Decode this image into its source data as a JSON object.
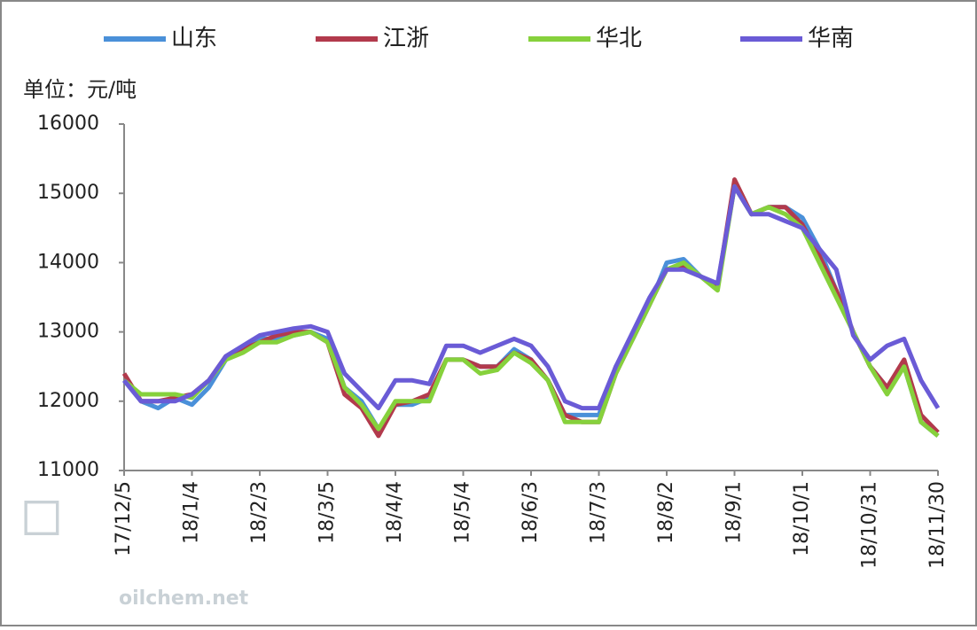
{
  "chart_data": {
    "type": "line",
    "unit_label": "单位：元/吨",
    "watermark": "oilchem.net",
    "categories": [
      "17/12/5",
      null,
      null,
      null,
      "18/1/4",
      null,
      null,
      null,
      "18/2/3",
      null,
      null,
      null,
      "18/3/5",
      null,
      null,
      null,
      "18/4/4",
      null,
      null,
      null,
      "18/5/4",
      null,
      null,
      null,
      "18/6/3",
      null,
      null,
      null,
      "18/7/3",
      null,
      null,
      null,
      "18/8/2",
      null,
      null,
      null,
      "18/9/1",
      null,
      null,
      null,
      "18/10/1",
      null,
      null,
      null,
      "18/10/31",
      null,
      null,
      null,
      "18/11/30"
    ],
    "ylim": [
      11000,
      16000
    ],
    "yticks": [
      11000,
      12000,
      13000,
      14000,
      15000,
      16000
    ],
    "grid": false,
    "legend": "top",
    "series": [
      {
        "name": "山东",
        "color": "#4a90d9",
        "values": [
          12300,
          12000,
          11900,
          12050,
          11950,
          12200,
          12600,
          12750,
          12900,
          12900,
          12950,
          13000,
          12900,
          12200,
          12000,
          11600,
          11950,
          11950,
          12050,
          12600,
          12600,
          12500,
          12500,
          12750,
          12600,
          12300,
          11800,
          11800,
          11800,
          12500,
          12900,
          13400,
          14000,
          14050,
          13800,
          13650,
          15100,
          14700,
          14800,
          14800,
          14650,
          14200,
          13600,
          13000,
          12500,
          12200,
          12500,
          11700,
          11500
        ]
      },
      {
        "name": "江浙",
        "color": "#b23a4c",
        "values": [
          12400,
          12000,
          12000,
          12050,
          12100,
          12300,
          12650,
          12750,
          12850,
          12950,
          13000,
          13000,
          12850,
          12100,
          11900,
          11500,
          11950,
          12000,
          12100,
          12600,
          12600,
          12500,
          12500,
          12700,
          12600,
          12300,
          11800,
          11700,
          11700,
          12400,
          12900,
          13400,
          13900,
          13950,
          13800,
          13650,
          15200,
          14700,
          14800,
          14800,
          14550,
          14100,
          13600,
          13000,
          12500,
          12200,
          12600,
          11800,
          11550
        ]
      },
      {
        "name": "华北",
        "color": "#86d13c",
        "values": [
          12300,
          12100,
          12100,
          12100,
          12050,
          12300,
          12600,
          12700,
          12850,
          12850,
          12950,
          13000,
          12850,
          12200,
          11950,
          11600,
          12000,
          12000,
          12000,
          12600,
          12600,
          12400,
          12450,
          12700,
          12550,
          12300,
          11700,
          11700,
          11700,
          12400,
          12900,
          13400,
          13900,
          14000,
          13800,
          13600,
          15100,
          14700,
          14800,
          14700,
          14500,
          14000,
          13500,
          13000,
          12500,
          12100,
          12500,
          11700,
          11500
        ]
      },
      {
        "name": "华南",
        "color": "#6a5bd6",
        "values": [
          12300,
          12000,
          12000,
          12000,
          12100,
          12300,
          12650,
          12800,
          12950,
          13000,
          13050,
          13080,
          13000,
          12400,
          12150,
          11900,
          12300,
          12300,
          12250,
          12800,
          12800,
          12700,
          12800,
          12900,
          12800,
          12500,
          12000,
          11900,
          11900,
          12500,
          13000,
          13500,
          13900,
          13900,
          13800,
          13700,
          15100,
          14700,
          14700,
          14600,
          14500,
          14200,
          13900,
          12950,
          12600,
          12800,
          12900,
          12300,
          11900
        ]
      }
    ]
  }
}
